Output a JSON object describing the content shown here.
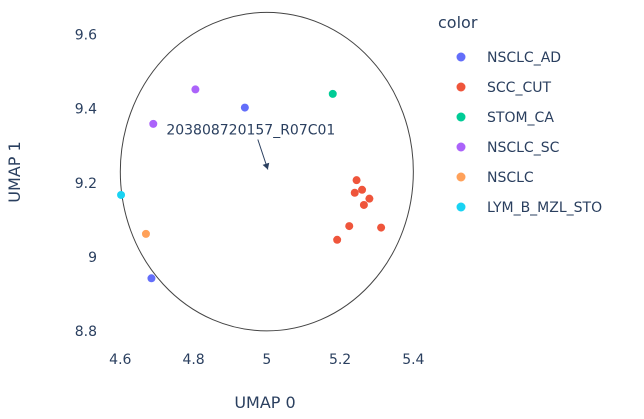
{
  "chart_data": {
    "type": "scatter",
    "title": "",
    "xlabel": "UMAP 0",
    "ylabel": "UMAP 1",
    "xlim": [
      4.55,
      5.44
    ],
    "ylim": [
      8.77,
      9.68
    ],
    "x_ticks": [
      4.6,
      4.8,
      5,
      5.2,
      5.4
    ],
    "x_tick_labels": [
      "4.6",
      "4.8",
      "5",
      "5.2",
      "5.4"
    ],
    "y_ticks": [
      8.8,
      9,
      9.2,
      9.4,
      9.6
    ],
    "y_tick_labels": [
      "8.8",
      "9",
      "9.2",
      "9.4",
      "9.6"
    ],
    "grid": false,
    "legend": {
      "title": "color",
      "placement": "right"
    },
    "series": [
      {
        "name": "NSCLC_AD",
        "color": "#636efa",
        "points": [
          [
            4.94,
            9.403
          ],
          [
            4.685,
            8.942
          ]
        ]
      },
      {
        "name": "SCC_CUT",
        "color": "#ef553b",
        "points": [
          [
            5.245,
            9.207
          ],
          [
            5.24,
            9.173
          ],
          [
            5.26,
            9.181
          ],
          [
            5.28,
            9.157
          ],
          [
            5.265,
            9.14
          ],
          [
            5.225,
            9.083
          ],
          [
            5.192,
            9.046
          ],
          [
            5.312,
            9.079
          ]
        ]
      },
      {
        "name": "STOM_CA",
        "color": "#00cc96",
        "points": [
          [
            5.18,
            9.44
          ]
        ]
      },
      {
        "name": "NSCLC_SC",
        "color": "#ab63fa",
        "points": [
          [
            4.805,
            9.452
          ],
          [
            4.69,
            9.359
          ]
        ]
      },
      {
        "name": "NSCLC",
        "color": "#ffa15a",
        "points": [
          [
            4.67,
            9.062
          ]
        ]
      },
      {
        "name": "LYM_B_MZL_STO",
        "color": "#19d3f3",
        "points": [
          [
            4.602,
            9.167
          ]
        ]
      }
    ],
    "shapes": [
      {
        "type": "circle",
        "x0": 4.6,
        "x1": 5.4,
        "y0": 8.8,
        "y1": 9.66,
        "color": "#444444"
      }
    ],
    "annotations": [
      {
        "text": "203808720157_R07C01",
        "x": 5.0,
        "y": 9.225,
        "arrow": true
      }
    ]
  }
}
